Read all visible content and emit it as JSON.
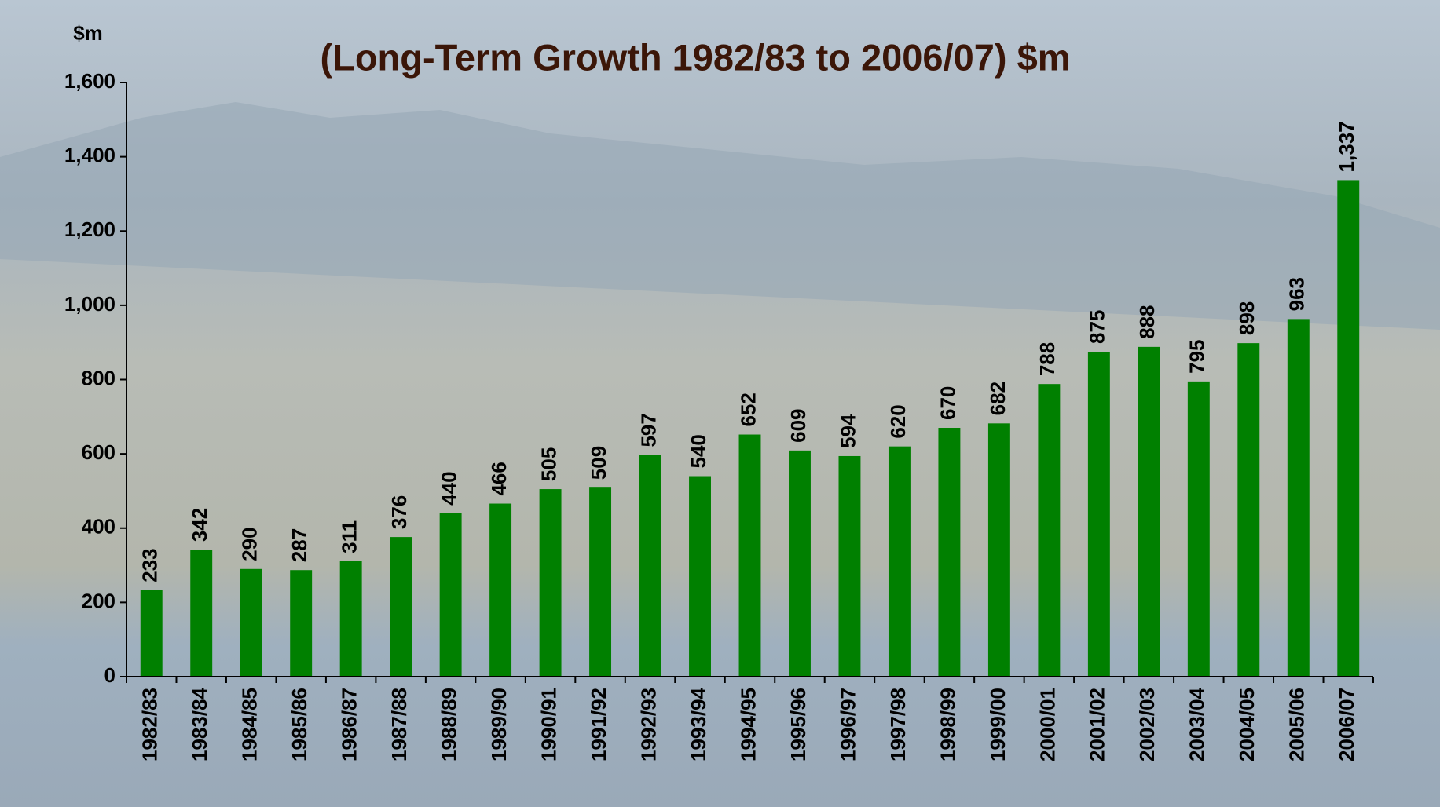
{
  "chart_data": {
    "type": "bar",
    "title": "(Long-Term Growth 1982/83 to 2006/07) $m",
    "y_label": "$m",
    "categories": [
      "1982/83",
      "1983/84",
      "1984/85",
      "1985/86",
      "1986/87",
      "1987/88",
      "1988/89",
      "1989/90",
      "1990/91",
      "1991/92",
      "1992/93",
      "1993/94",
      "1994/95",
      "1995/96",
      "1996/97",
      "1997/98",
      "1998/99",
      "1999/00",
      "2000/01",
      "2001/02",
      "2002/03",
      "2003/04",
      "2004/05",
      "2005/06",
      "2006/07"
    ],
    "values": [
      233,
      342,
      290,
      287,
      311,
      376,
      440,
      466,
      505,
      509,
      597,
      540,
      652,
      609,
      594,
      620,
      670,
      682,
      788,
      875,
      888,
      795,
      898,
      963,
      1337
    ],
    "value_labels": [
      "233",
      "342",
      "290",
      "287",
      "311",
      "376",
      "440",
      "466",
      "505",
      "509",
      "597",
      "540",
      "652",
      "609",
      "594",
      "620",
      "670",
      "682",
      "788",
      "875",
      "888",
      "795",
      "898",
      "963",
      "1,337"
    ],
    "color": "#008000",
    "ylim": [
      0,
      1600
    ],
    "yticks": [
      0,
      200,
      400,
      600,
      800,
      {
        "value": 1000,
        "label": "1,000"
      },
      {
        "value": 1200,
        "label": "1,200"
      },
      {
        "value": 1400,
        "label": "1,400"
      },
      {
        "value": 1600,
        "label": "1,600"
      }
    ],
    "grid": false
  }
}
